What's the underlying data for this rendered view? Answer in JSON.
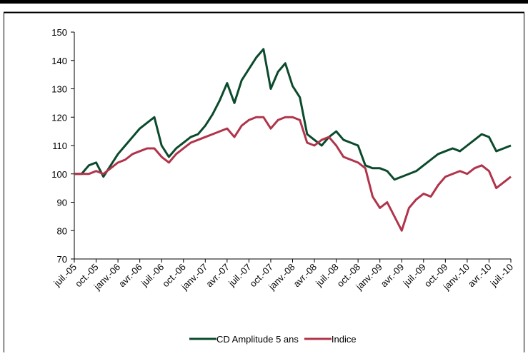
{
  "chart_data": {
    "type": "line",
    "categories": [
      "juil.-05",
      null,
      null,
      "oct.-05",
      null,
      null,
      "janv.-06",
      null,
      null,
      "avr.-06",
      null,
      null,
      "juil.-06",
      null,
      null,
      "oct.-06",
      null,
      null,
      "janv.-07",
      null,
      null,
      "avr.-07",
      null,
      null,
      "juil.-07",
      null,
      null,
      "oct.-07",
      null,
      null,
      "janv.-08",
      null,
      null,
      "avr.-08",
      null,
      null,
      "juil.-08",
      null,
      null,
      "oct.-08",
      null,
      null,
      "janv.-09",
      null,
      null,
      "avr.-09",
      null,
      null,
      "juil.-09",
      null,
      null,
      "oct.-09",
      null,
      null,
      "janv.-10",
      null,
      null,
      "avr.-10",
      null,
      null,
      "juil.-10"
    ],
    "series": [
      {
        "name": "CD Amplitude 5 ans",
        "color": "#0b4a2c",
        "values": [
          100,
          100,
          103,
          104,
          99,
          103,
          107,
          110,
          113,
          116,
          118,
          120,
          110,
          106,
          109,
          111,
          113,
          114,
          117,
          121,
          126,
          132,
          125,
          133,
          137,
          141,
          144,
          130,
          136,
          139,
          131,
          127,
          114,
          112,
          110,
          113,
          115,
          112,
          111,
          110,
          103,
          102,
          102,
          101,
          98,
          99,
          100,
          101,
          103,
          105,
          107,
          108,
          109,
          108,
          110,
          112,
          114,
          113,
          108,
          109,
          110
        ]
      },
      {
        "name": "Indice",
        "color": "#b0344a",
        "values": [
          100,
          100,
          100,
          101,
          100,
          102,
          104,
          105,
          107,
          108,
          109,
          109,
          106,
          104,
          107,
          109,
          111,
          112,
          113,
          114,
          115,
          116,
          113,
          117,
          119,
          120,
          120,
          116,
          119,
          120,
          120,
          119,
          111,
          110,
          112,
          113,
          110,
          106,
          105,
          104,
          102,
          92,
          88,
          90,
          85,
          80,
          88,
          91,
          93,
          92,
          96,
          99,
          100,
          101,
          100,
          102,
          103,
          101,
          95,
          97,
          99
        ]
      }
    ],
    "ylim": [
      70,
      150
    ],
    "yticks": [
      70,
      80,
      90,
      100,
      110,
      120,
      130,
      140,
      150
    ],
    "legend": "bottom"
  }
}
